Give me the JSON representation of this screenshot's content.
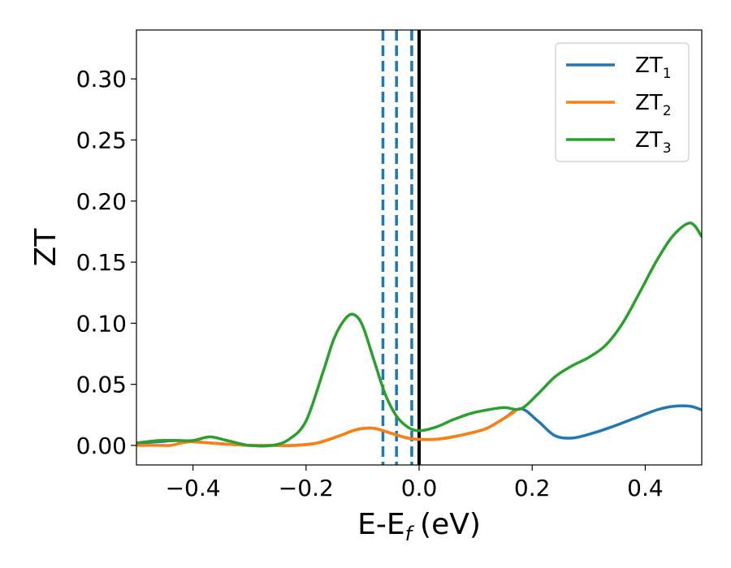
{
  "chart_data": {
    "type": "line",
    "xlabel": "E-E",
    "xlabel_sub": "f",
    "xlabel_unit": "(eV)",
    "ylabel": "ZT",
    "xlim": [
      -0.5,
      0.5
    ],
    "ylim": [
      -0.016,
      0.34
    ],
    "xticks": [
      -0.4,
      -0.2,
      0.0,
      0.2,
      0.4
    ],
    "xtick_labels": [
      "−0.4",
      "−0.2",
      "0.0",
      "0.2",
      "0.4"
    ],
    "yticks": [
      0.0,
      0.05,
      0.1,
      0.15,
      0.2,
      0.25,
      0.3
    ],
    "ytick_labels": [
      "0.00",
      "0.05",
      "0.10",
      "0.15",
      "0.20",
      "0.25",
      "0.30"
    ],
    "grid": false,
    "legend_position": "top-right",
    "vertical_lines": [
      {
        "x": -0.064,
        "style": "dashed",
        "color": "#1f77b4"
      },
      {
        "x": -0.04,
        "style": "dashed",
        "color": "#1f77b4"
      },
      {
        "x": -0.013,
        "style": "dashed",
        "color": "#1f77b4"
      },
      {
        "x": 0.0,
        "style": "solid",
        "color": "#000000"
      }
    ],
    "series": [
      {
        "name": "ZT",
        "name_sub": "1",
        "color": "#1f77b4",
        "x": [
          -0.5,
          -0.46,
          -0.43,
          -0.4,
          -0.37,
          -0.34,
          -0.3,
          -0.26,
          -0.22,
          -0.18,
          -0.14,
          -0.11,
          -0.08,
          -0.05,
          -0.02,
          0.0,
          0.03,
          0.06,
          0.09,
          0.12,
          0.15,
          0.18,
          0.21,
          0.24,
          0.27,
          0.3,
          0.34,
          0.38,
          0.42,
          0.45,
          0.48,
          0.5
        ],
        "y": [
          0.002,
          0.003,
          0.004,
          0.003,
          0.002,
          0.001,
          0.0,
          0.0,
          0.0,
          0.002,
          0.008,
          0.013,
          0.014,
          0.01,
          0.006,
          0.005,
          0.005,
          0.007,
          0.01,
          0.014,
          0.022,
          0.03,
          0.02,
          0.008,
          0.006,
          0.009,
          0.015,
          0.022,
          0.029,
          0.032,
          0.032,
          0.029
        ]
      },
      {
        "name": "ZT",
        "name_sub": "2",
        "color": "#ff7f0e",
        "x": [
          -0.5,
          -0.46,
          -0.44,
          -0.42,
          -0.4,
          -0.37,
          -0.34,
          -0.3,
          -0.26,
          -0.22,
          -0.18,
          -0.14,
          -0.11,
          -0.08,
          -0.05,
          -0.02,
          0.0,
          0.03,
          0.06,
          0.09,
          0.12,
          0.15,
          0.17
        ],
        "y": [
          0.0,
          0.0,
          0.0,
          0.002,
          0.003,
          0.002,
          0.001,
          0.0,
          0.0,
          0.0,
          0.002,
          0.008,
          0.013,
          0.014,
          0.01,
          0.006,
          0.005,
          0.005,
          0.007,
          0.01,
          0.014,
          0.022,
          0.028
        ]
      },
      {
        "name": "ZT",
        "name_sub": "3",
        "color": "#2ca02c",
        "x": [
          -0.5,
          -0.46,
          -0.43,
          -0.4,
          -0.37,
          -0.34,
          -0.3,
          -0.26,
          -0.23,
          -0.2,
          -0.17,
          -0.15,
          -0.13,
          -0.115,
          -0.1,
          -0.08,
          -0.06,
          -0.04,
          -0.02,
          0.0,
          0.03,
          0.06,
          0.09,
          0.12,
          0.15,
          0.18,
          0.21,
          0.24,
          0.27,
          0.3,
          0.33,
          0.36,
          0.39,
          0.42,
          0.45,
          0.48,
          0.5
        ],
        "y": [
          0.002,
          0.004,
          0.004,
          0.004,
          0.007,
          0.004,
          0.0,
          0.0,
          0.005,
          0.02,
          0.06,
          0.088,
          0.104,
          0.107,
          0.098,
          0.07,
          0.042,
          0.024,
          0.015,
          0.012,
          0.015,
          0.021,
          0.026,
          0.029,
          0.031,
          0.03,
          0.042,
          0.056,
          0.065,
          0.072,
          0.082,
          0.1,
          0.125,
          0.151,
          0.172,
          0.182,
          0.171
        ]
      }
    ]
  }
}
